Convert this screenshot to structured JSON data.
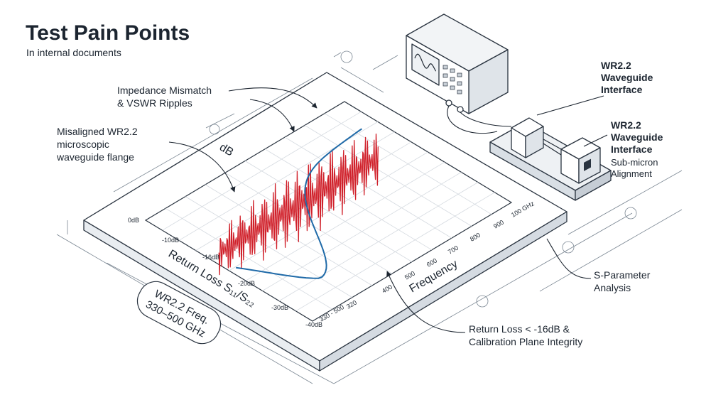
{
  "header": {
    "title": "Test Pain Points",
    "subtitle": "In internal documents"
  },
  "callouts": {
    "ripples": [
      "Impedance Mismatch",
      "& VSWR Ripples"
    ],
    "flange": [
      "Misaligned WR2.2",
      "microscopic",
      "waveguide flange"
    ],
    "interface": [
      "WR2.2",
      "Waveguide",
      "Interface"
    ],
    "alignment": {
      "title": [
        "WR2.2",
        "Waveguide",
        "Interface"
      ],
      "detail": [
        "Sub-micron",
        "Alignment"
      ]
    },
    "analysis": [
      "S-Parameter",
      "Analysis"
    ],
    "return_loss": [
      "Return Loss < -16dB &",
      "Calibration Plane Integrity"
    ]
  },
  "badge": [
    "WR2.2 Freq.",
    "330–500 GHz"
  ],
  "plot": {
    "db_label": "dB",
    "db_ticks": [
      "0dB",
      "-10dB",
      "-16dB",
      "-20dB",
      "-30dB",
      "-40dB"
    ],
    "y_title": "Return Loss S₁₁/S₂₂",
    "x_title": "Frequency",
    "freq_ticks": [
      "330 - 500",
      "320",
      "400",
      "500",
      "600",
      "700",
      "800",
      "900",
      "100 GHz"
    ]
  }
}
